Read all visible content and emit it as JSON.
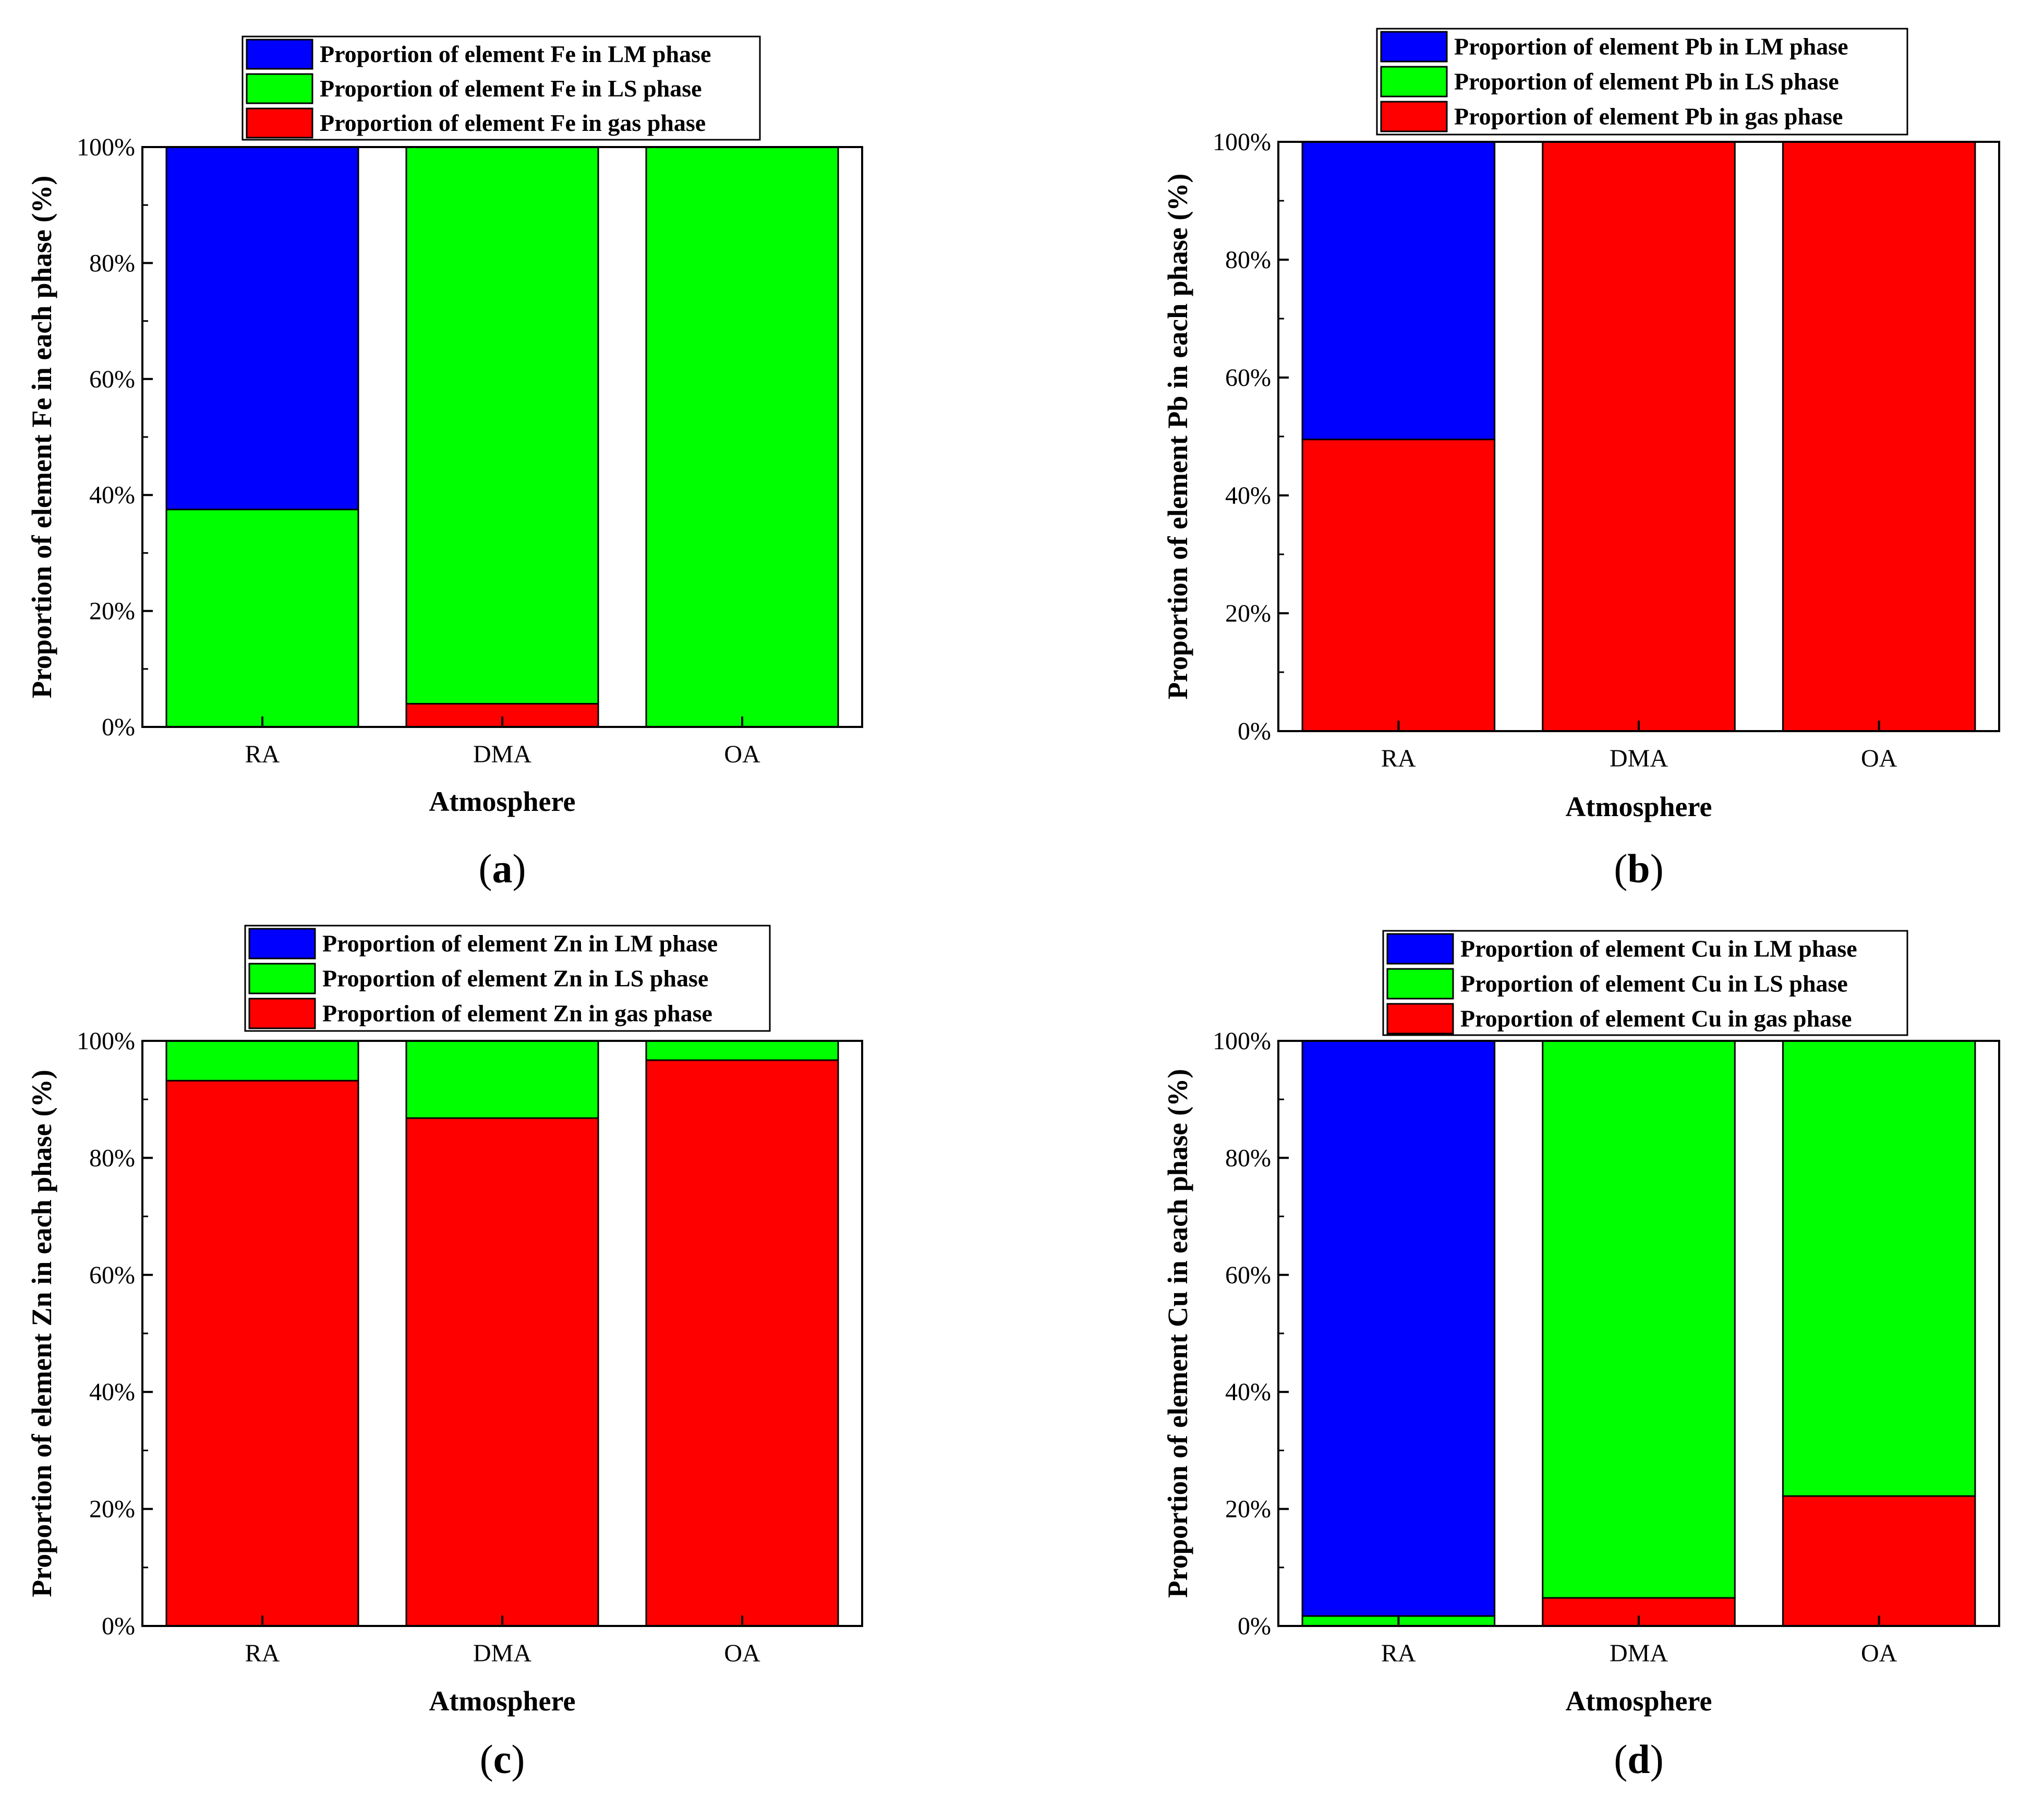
{
  "chart_data": [
    {
      "type": "bar",
      "stacked": true,
      "panel_label": "a",
      "element": "Fe",
      "categories": [
        "RA",
        "DMA",
        "OA"
      ],
      "series": [
        {
          "name": "Proportion of element Fe in gas phase",
          "color": "#ff0000",
          "values": [
            0,
            4,
            0
          ]
        },
        {
          "name": "Proportion of element Fe in LS phase",
          "color": "#00ff00",
          "values": [
            37.5,
            96,
            100
          ]
        },
        {
          "name": "Proportion of element Fe in LM phase",
          "color": "#0000ff",
          "values": [
            62.5,
            0,
            0
          ]
        }
      ],
      "legend": [
        "Proportion of element Fe in LM phase",
        "Proportion of element Fe in LS phase",
        "Proportion of element Fe in gas phase"
      ],
      "xlabel": "Atmosphere",
      "ylabel": "Proportion of element Fe in each phase (%)",
      "ylim": [
        0,
        100
      ],
      "yticks": [
        "0%",
        "20%",
        "40%",
        "60%",
        "80%",
        "100%"
      ]
    },
    {
      "type": "bar",
      "stacked": true,
      "panel_label": "b",
      "element": "Pb",
      "categories": [
        "RA",
        "DMA",
        "OA"
      ],
      "series": [
        {
          "name": "Proportion of element Pb in gas phase",
          "color": "#ff0000",
          "values": [
            49.5,
            100,
            100
          ]
        },
        {
          "name": "Proportion of element Pb in LS phase",
          "color": "#00ff00",
          "values": [
            0,
            0,
            0
          ]
        },
        {
          "name": "Proportion of element Pb in LM phase",
          "color": "#0000ff",
          "values": [
            50.5,
            0,
            0
          ]
        }
      ],
      "legend": [
        "Proportion of element Pb in LM phase",
        "Proportion of element Pb in LS phase",
        "Proportion of element Pb in gas phase"
      ],
      "xlabel": "Atmosphere",
      "ylabel": "Proportion of element Pb in each phase (%)",
      "ylim": [
        0,
        100
      ],
      "yticks": [
        "0%",
        "20%",
        "40%",
        "60%",
        "80%",
        "100%"
      ]
    },
    {
      "type": "bar",
      "stacked": true,
      "panel_label": "c",
      "element": "Zn",
      "categories": [
        "RA",
        "DMA",
        "OA"
      ],
      "series": [
        {
          "name": "Proportion of element Zn in gas phase",
          "color": "#ff0000",
          "values": [
            93.2,
            86.8,
            96.7
          ]
        },
        {
          "name": "Proportion of element Zn in LS phase",
          "color": "#00ff00",
          "values": [
            6.8,
            13.2,
            3.3
          ]
        },
        {
          "name": "Proportion of element Zn in LM phase",
          "color": "#0000ff",
          "values": [
            0,
            0,
            0
          ]
        }
      ],
      "legend": [
        "Proportion of element Zn in LM phase",
        "Proportion of element Zn in LS phase",
        "Proportion of element Zn in gas phase"
      ],
      "xlabel": "Atmosphere",
      "ylabel": "Proportion of element Zn in each phase (%)",
      "ylim": [
        0,
        100
      ],
      "yticks": [
        "0%",
        "20%",
        "40%",
        "60%",
        "80%",
        "100%"
      ]
    },
    {
      "type": "bar",
      "stacked": true,
      "panel_label": "d",
      "element": "Cu",
      "categories": [
        "RA",
        "DMA",
        "OA"
      ],
      "series": [
        {
          "name": "Proportion of element Cu in gas phase",
          "color": "#ff0000",
          "values": [
            0,
            4.8,
            22.2
          ]
        },
        {
          "name": "Proportion of element Cu in LS phase",
          "color": "#00ff00",
          "values": [
            1.7,
            95.2,
            77.8
          ]
        },
        {
          "name": "Proportion of element Cu in LM phase",
          "color": "#0000ff",
          "values": [
            98.3,
            0,
            0
          ]
        }
      ],
      "legend": [
        "Proportion of element Cu in LM phase",
        "Proportion of element Cu in LS phase",
        "Proportion of element Cu in gas phase"
      ],
      "xlabel": "Atmosphere",
      "ylabel": "Proportion of element Cu in each phase (%)",
      "ylim": [
        0,
        100
      ],
      "yticks": [
        "0%",
        "20%",
        "40%",
        "60%",
        "80%",
        "100%"
      ]
    }
  ]
}
